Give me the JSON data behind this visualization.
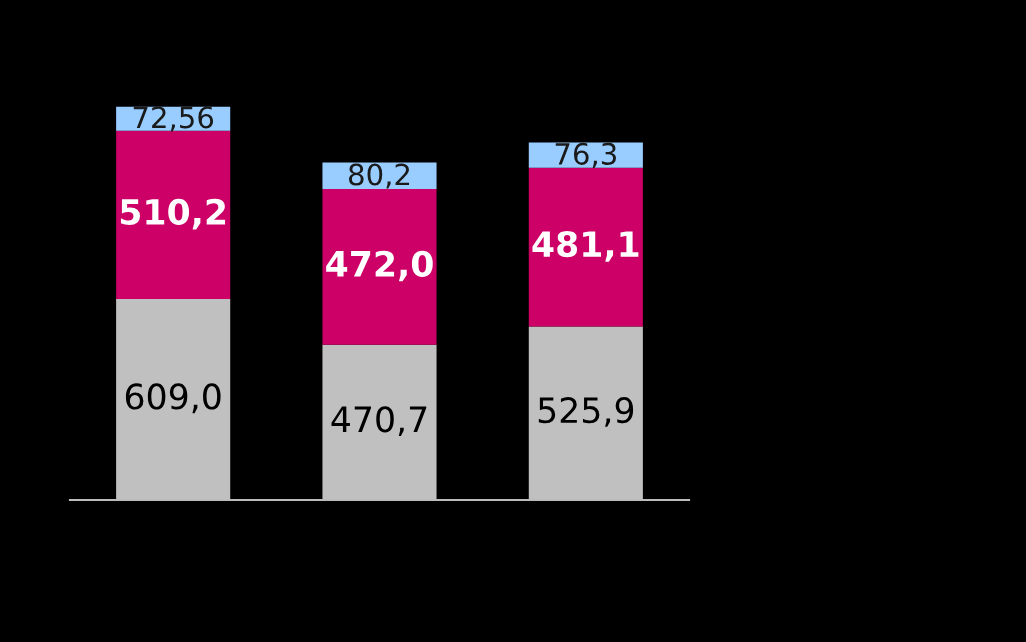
{
  "chart_data": {
    "type": "bar",
    "stacked": true,
    "categories": [
      null,
      null,
      null
    ],
    "legend": false,
    "grid": false,
    "series": [
      {
        "color": "#c0c0c0",
        "values": [
          609.0,
          470.7,
          525.9
        ],
        "value_labels": [
          "609,0",
          "470,7",
          "525,9"
        ]
      },
      {
        "color": "#cc0066",
        "values": [
          510.2,
          472.0,
          481.1
        ],
        "value_labels": [
          "510,2",
          "472,0",
          "481,1"
        ]
      },
      {
        "color": "#99ccff",
        "values": [
          72.56,
          80.2,
          76.3
        ],
        "value_labels": [
          "72,56",
          "80,2",
          "76,3"
        ]
      }
    ]
  }
}
